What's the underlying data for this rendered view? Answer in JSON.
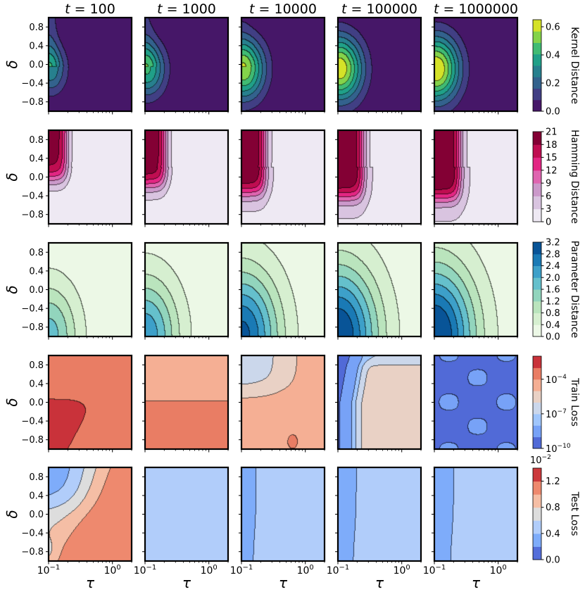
{
  "chart_data": {
    "type": "heatmap",
    "subtype": "filled-contour-grid",
    "col_titles": [
      "t = 100",
      "t = 1000",
      "t = 10000",
      "t = 100000",
      "t = 1000000"
    ],
    "col_title_var": "t",
    "col_title_values": [
      "100",
      "1000",
      "10000",
      "100000",
      "1000000"
    ],
    "xlabel": "τ",
    "ylabel": "δ",
    "x_scale": "log",
    "xlim": [
      0.1,
      2.0
    ],
    "x_ticks": [
      {
        "value": 0.1,
        "base": "10",
        "exp": "−1"
      },
      {
        "value": 1.0,
        "base": "10",
        "exp": "0"
      }
    ],
    "ylim": [
      -1.0,
      1.0
    ],
    "y_ticks": [
      "0.8",
      "0.4",
      "0.0",
      "−0.4",
      "−0.8"
    ],
    "y_tick_values": [
      0.8,
      0.4,
      0.0,
      -0.4,
      -0.8
    ],
    "rows": [
      {
        "metric": "Kernel Distance",
        "colorbar_label": "Kernel Distance",
        "colormap": "viridis",
        "colorbar_ticks": [
          "0.0",
          "0.2",
          "0.4",
          "0.6"
        ],
        "colorbar_tick_values": [
          0.0,
          0.2,
          0.4,
          0.6
        ],
        "colorbar_range": [
          0.0,
          0.65
        ],
        "levels": 8,
        "colorbar_scale": "linear",
        "colorbar_offset": "",
        "approx_peak_by_t": [
          0.18,
          0.42,
          0.62,
          0.64,
          0.64
        ]
      },
      {
        "metric": "Hamming Distance",
        "colorbar_label": "Hamming Distance",
        "colormap": "PuRd",
        "colorbar_ticks": [
          "0",
          "3",
          "6",
          "9",
          "12",
          "15",
          "18",
          "21"
        ],
        "colorbar_tick_values": [
          0,
          3,
          6,
          9,
          12,
          15,
          18,
          21
        ],
        "colorbar_range": [
          0,
          21
        ],
        "levels": 7,
        "colorbar_scale": "linear",
        "colorbar_offset": "",
        "approx_peak_by_t": [
          21,
          21,
          21,
          21,
          21
        ]
      },
      {
        "metric": "Parameter Distance",
        "colorbar_label": "Parameter Distance",
        "colormap": "GnBu",
        "colorbar_ticks": [
          "0.0",
          "0.4",
          "0.8",
          "1.2",
          "1.6",
          "2.0",
          "2.4",
          "2.8",
          "3.2"
        ],
        "colorbar_tick_values": [
          0.0,
          0.4,
          0.8,
          1.2,
          1.6,
          2.0,
          2.4,
          2.8,
          3.2
        ],
        "colorbar_range": [
          0.0,
          3.2
        ],
        "levels": 8,
        "colorbar_scale": "linear",
        "colorbar_offset": "",
        "approx_peak_by_t": [
          1.2,
          1.6,
          3.0,
          3.2,
          3.2
        ]
      },
      {
        "metric": "Train Loss",
        "colorbar_label": "Train Loss",
        "colormap": "coolwarm",
        "colorbar_ticks": [
          {
            "base": "10",
            "exp": "−4",
            "value": 0.0001
          },
          {
            "base": "10",
            "exp": "−7",
            "value": 1e-07
          },
          {
            "base": "10",
            "exp": "−10",
            "value": 1e-10
          }
        ],
        "colorbar_range": [
          1e-10,
          0.01
        ],
        "levels": 8,
        "colorbar_scale": "log",
        "colorbar_offset": ""
      },
      {
        "metric": "Test Loss",
        "colorbar_label": "Test Loss",
        "colormap": "coolwarm",
        "colorbar_ticks": [
          "0.0",
          "0.4",
          "0.8",
          "1.2"
        ],
        "colorbar_tick_values": [
          0.0,
          0.4,
          0.8,
          1.2
        ],
        "colorbar_range": [
          0.0,
          1.4
        ],
        "levels": 7,
        "colorbar_scale": "linear",
        "colorbar_offset": {
          "base": "10",
          "exp": "−2"
        }
      }
    ],
    "grid": false
  }
}
